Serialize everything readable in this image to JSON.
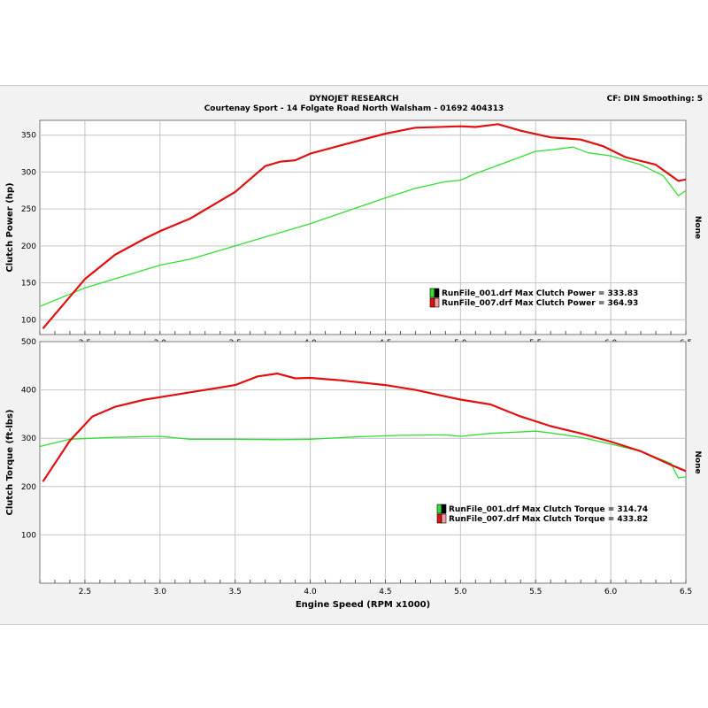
{
  "header": {
    "company": "DYNOJET RESEARCH",
    "address": "Courtenay Sport - 14 Folgate Road North Walsham - 01692 404313",
    "cf": "CF: DIN  Smoothing: 5"
  },
  "colors": {
    "run_001": "#33dd33",
    "run_007": "#e01010",
    "grid": "#c4c4c4",
    "plot_bg": "#ffffff"
  },
  "chart_data": [
    {
      "type": "line",
      "ylabel": "Clutch Power (hp)",
      "xlabel": "",
      "side_label": "None",
      "xlim": [
        2.2,
        6.5
      ],
      "ylim": [
        80,
        370
      ],
      "x_ticks": [
        "2.5",
        "3.0",
        "3.5",
        "4.0",
        "4.5",
        "5.0",
        "5.5",
        "6.0",
        "6.5"
      ],
      "y_ticks": [
        "100",
        "150",
        "200",
        "250",
        "300",
        "350"
      ],
      "series": [
        {
          "name": "RunFile_001.drf Max Clutch Power = 333.83",
          "color": "#33dd33",
          "x": [
            2.2,
            2.5,
            3.0,
            3.2,
            3.5,
            3.7,
            4.0,
            4.2,
            4.5,
            4.7,
            4.9,
            5.0,
            5.1,
            5.3,
            5.5,
            5.6,
            5.75,
            5.85,
            6.0,
            6.2,
            6.35,
            6.45,
            6.5
          ],
          "y": [
            118,
            143,
            174,
            182,
            200,
            212,
            230,
            244,
            265,
            278,
            287,
            289,
            298,
            313,
            328,
            330,
            333.8,
            326,
            322,
            310,
            295,
            268,
            275
          ]
        },
        {
          "name": "RunFile_007.drf Max Clutch Power = 364.93",
          "color": "#e01010",
          "x": [
            2.22,
            2.5,
            2.7,
            2.9,
            3.0,
            3.2,
            3.5,
            3.7,
            3.8,
            3.9,
            4.0,
            4.2,
            4.5,
            4.7,
            5.0,
            5.1,
            5.25,
            5.4,
            5.6,
            5.8,
            5.95,
            6.1,
            6.3,
            6.45,
            6.5
          ],
          "y": [
            88,
            155,
            188,
            210,
            220,
            237,
            273,
            308,
            314,
            316,
            325,
            336,
            352,
            360,
            362,
            361,
            364.9,
            356,
            347,
            344,
            335,
            320,
            310,
            288,
            290
          ]
        }
      ]
    },
    {
      "type": "line",
      "ylabel": "Clutch Torque (ft-lbs)",
      "xlabel": "Engine Speed (RPM x1000)",
      "side_label": "None",
      "xlim": [
        2.2,
        6.5
      ],
      "ylim": [
        0,
        500
      ],
      "x_ticks": [
        "2.5",
        "3.0",
        "3.5",
        "4.0",
        "4.5",
        "5.0",
        "5.5",
        "6.0",
        "6.5"
      ],
      "y_ticks": [
        "100",
        "200",
        "300",
        "400",
        "500"
      ],
      "series": [
        {
          "name": "RunFile_001.drf Max Clutch Torque = 314.74",
          "color": "#33dd33",
          "x": [
            2.2,
            2.4,
            2.7,
            3.0,
            3.2,
            3.5,
            3.8,
            4.0,
            4.3,
            4.6,
            4.9,
            5.0,
            5.2,
            5.5,
            5.6,
            5.8,
            6.0,
            6.2,
            6.4,
            6.45,
            6.5
          ],
          "y": [
            283,
            298,
            302,
            304,
            298,
            298,
            297,
            298,
            303,
            306,
            307,
            304,
            310,
            314.7,
            311,
            302,
            288,
            273,
            248,
            218,
            220
          ]
        },
        {
          "name": "RunFile_007.drf Max Clutch Torque = 433.82",
          "color": "#e01010",
          "x": [
            2.22,
            2.4,
            2.55,
            2.7,
            2.9,
            3.0,
            3.2,
            3.5,
            3.65,
            3.78,
            3.9,
            4.0,
            4.2,
            4.5,
            4.7,
            5.0,
            5.2,
            5.4,
            5.6,
            5.8,
            6.0,
            6.2,
            6.4,
            6.5
          ],
          "y": [
            210,
            295,
            345,
            365,
            380,
            385,
            395,
            410,
            428,
            433.8,
            424,
            425,
            420,
            410,
            400,
            380,
            370,
            345,
            325,
            310,
            293,
            273,
            245,
            232
          ]
        }
      ]
    }
  ]
}
